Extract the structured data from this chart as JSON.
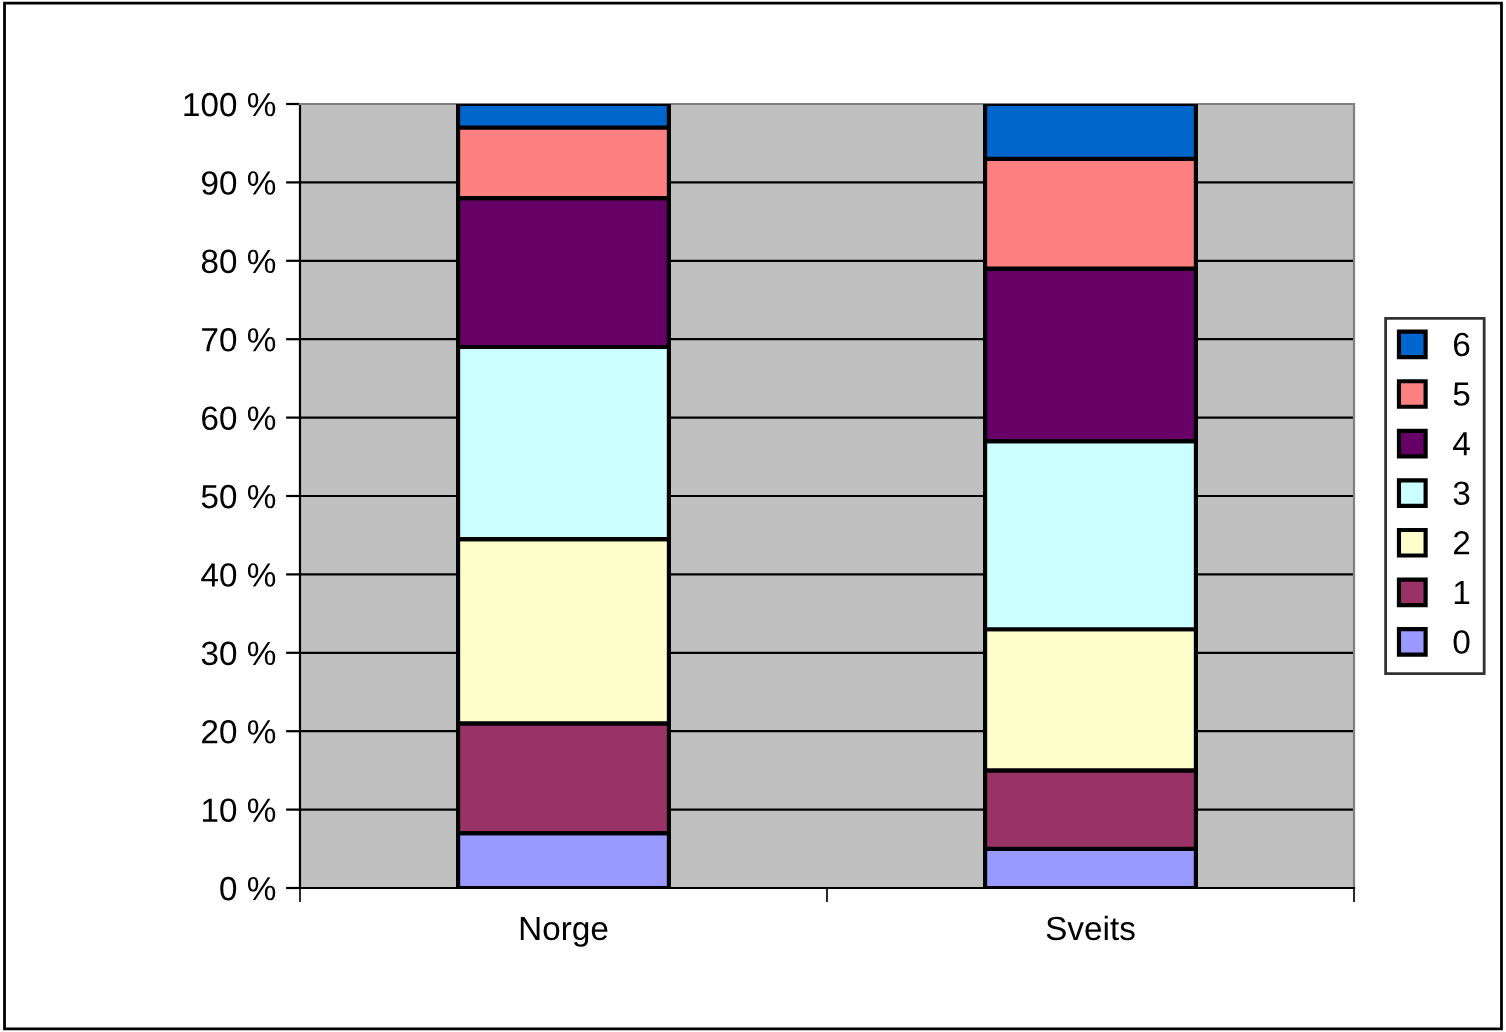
{
  "chart_data": {
    "type": "bar",
    "stacked": true,
    "categories": [
      "Norge",
      "Sveits"
    ],
    "series": [
      {
        "name": "0",
        "color": "#9999ff",
        "values": [
          7,
          5
        ]
      },
      {
        "name": "1",
        "color": "#993366",
        "values": [
          14,
          10
        ]
      },
      {
        "name": "2",
        "color": "#ffffcc",
        "values": [
          23.5,
          18
        ]
      },
      {
        "name": "3",
        "color": "#ccffff",
        "values": [
          24.5,
          24
        ]
      },
      {
        "name": "4",
        "color": "#660066",
        "values": [
          19,
          22
        ]
      },
      {
        "name": "5",
        "color": "#ff8080",
        "values": [
          9,
          14
        ]
      },
      {
        "name": "6",
        "color": "#0066cc",
        "values": [
          3,
          7
        ]
      }
    ],
    "ylim": [
      0,
      100
    ],
    "yticks": [
      {
        "value": 0,
        "label": "0 %"
      },
      {
        "value": 10,
        "label": "10 %"
      },
      {
        "value": 20,
        "label": "20 %"
      },
      {
        "value": 30,
        "label": "30 %"
      },
      {
        "value": 40,
        "label": "40 %"
      },
      {
        "value": 50,
        "label": "50 %"
      },
      {
        "value": 60,
        "label": "60 %"
      },
      {
        "value": 70,
        "label": "70 %"
      },
      {
        "value": 80,
        "label": "80 %"
      },
      {
        "value": 90,
        "label": "90 %"
      },
      {
        "value": 100,
        "label": "100 %"
      }
    ],
    "grid": "y",
    "legend": "right"
  }
}
